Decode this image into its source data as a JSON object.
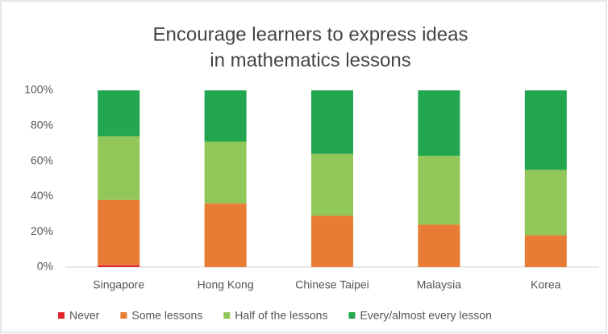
{
  "chart_data": {
    "type": "stacked_bar",
    "title": [
      "Encourage learners to express ideas",
      "in mathematics lessons"
    ],
    "categories": [
      "Singapore",
      "Hong Kong",
      "Chinese Taipei",
      "Malaysia",
      "Korea"
    ],
    "series": [
      {
        "name": "Never",
        "color": "#e0282e",
        "values": [
          1,
          0,
          0,
          0,
          0
        ]
      },
      {
        "name": "Some lessons",
        "color": "#e97c35",
        "values": [
          37,
          36,
          29,
          24,
          18
        ]
      },
      {
        "name": "Half of the lessons",
        "color": "#92c75a",
        "values": [
          36,
          35,
          35,
          39,
          37
        ]
      },
      {
        "name": "Every/almost every lesson",
        "color": "#22a650",
        "values": [
          26,
          29,
          36,
          37,
          45
        ]
      }
    ],
    "ylim": [
      0,
      100
    ],
    "yticks": [
      {
        "value": 0,
        "label": "0%"
      },
      {
        "value": 20,
        "label": "20%"
      },
      {
        "value": 40,
        "label": "40%"
      },
      {
        "value": 60,
        "label": "60%"
      },
      {
        "value": 80,
        "label": "80%"
      },
      {
        "value": 100,
        "label": "100%"
      }
    ],
    "grid": false,
    "legend": "bottom"
  }
}
